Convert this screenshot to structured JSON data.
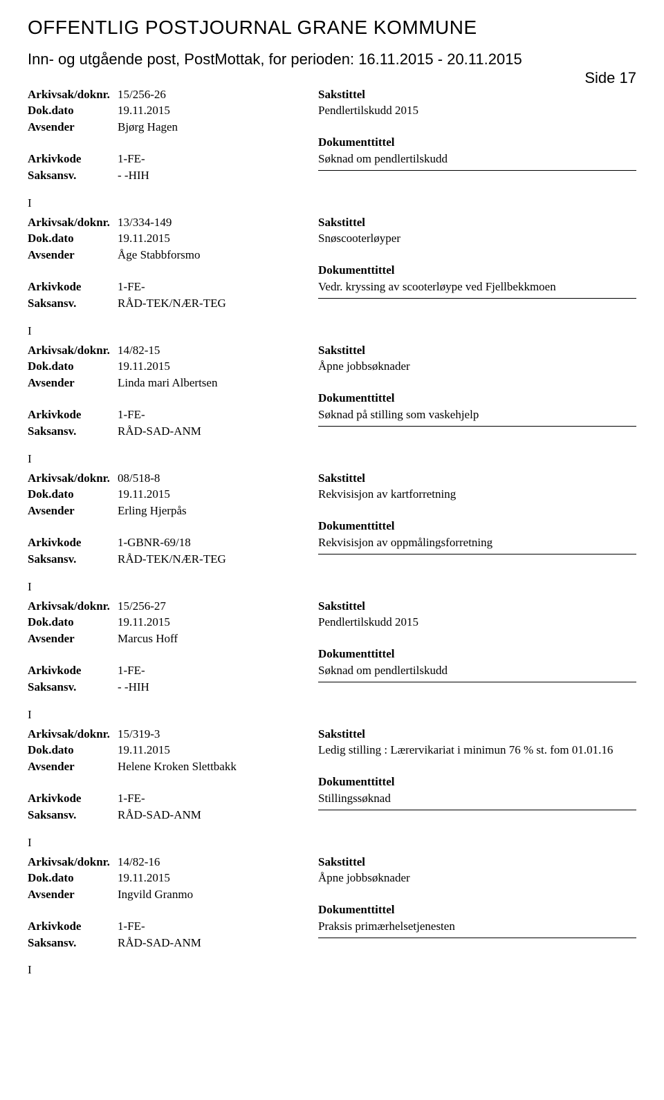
{
  "header": {
    "main_title": "OFFENTLIG POSTJOURNAL GRANE KOMMUNE",
    "sub_title": "Inn- og utgående post, PostMottak, for perioden: 16.11.2015 - 20.11.2015",
    "page_label": "Side 17"
  },
  "labels": {
    "arkivsak": "Arkivsak/doknr.",
    "dokdato": "Dok.dato",
    "avsender": "Avsender",
    "arkivkode": "Arkivkode",
    "saksansv": "Saksansv.",
    "sakstittel": "Sakstittel",
    "dokumenttittel": "Dokumenttittel",
    "i": "I"
  },
  "entries": [
    {
      "arkivsak": "15/256-26",
      "dokdato": "19.11.2015",
      "avsender": "Bjørg Hagen",
      "arkivkode": "1-FE-",
      "saksansv": "- -HIH",
      "sakstittel": "Pendlertilskudd 2015",
      "doktittel": "Søknad om pendlertilskudd"
    },
    {
      "arkivsak": "13/334-149",
      "dokdato": "19.11.2015",
      "avsender": "Åge Stabbforsmo",
      "arkivkode": "1-FE-",
      "saksansv": "RÅD-TEK/NÆR-TEG",
      "sakstittel": "Snøscooterløyper",
      "doktittel": "Vedr. kryssing av scooterløype ved Fjellbekkmoen"
    },
    {
      "arkivsak": "14/82-15",
      "dokdato": "19.11.2015",
      "avsender": "Linda mari Albertsen",
      "arkivkode": "1-FE-",
      "saksansv": "RÅD-SAD-ANM",
      "sakstittel": "Åpne jobbsøknader",
      "doktittel": "Søknad på stilling som vaskehjelp"
    },
    {
      "arkivsak": "08/518-8",
      "dokdato": "19.11.2015",
      "avsender": "Erling Hjerpås",
      "arkivkode": "1-GBNR-69/18",
      "saksansv": "RÅD-TEK/NÆR-TEG",
      "sakstittel": "Rekvisisjon av kartforretning",
      "doktittel": "Rekvisisjon av oppmålingsforretning"
    },
    {
      "arkivsak": "15/256-27",
      "dokdato": "19.11.2015",
      "avsender": "Marcus Hoff",
      "arkivkode": "1-FE-",
      "saksansv": "- -HIH",
      "sakstittel": "Pendlertilskudd 2015",
      "doktittel": "Søknad om pendlertilskudd"
    },
    {
      "arkivsak": "15/319-3",
      "dokdato": "19.11.2015",
      "avsender": "Helene Kroken Slettbakk",
      "arkivkode": "1-FE-",
      "saksansv": "RÅD-SAD-ANM",
      "sakstittel": "Ledig stilling : Lærervikariat i minimun 76 % st. fom 01.01.16",
      "doktittel": "Stillingssøknad"
    },
    {
      "arkivsak": "14/82-16",
      "dokdato": "19.11.2015",
      "avsender": "Ingvild Granmo",
      "arkivkode": "1-FE-",
      "saksansv": "RÅD-SAD-ANM",
      "sakstittel": "Åpne jobbsøknader",
      "doktittel": "Praksis primærhelsetjenesten"
    }
  ]
}
